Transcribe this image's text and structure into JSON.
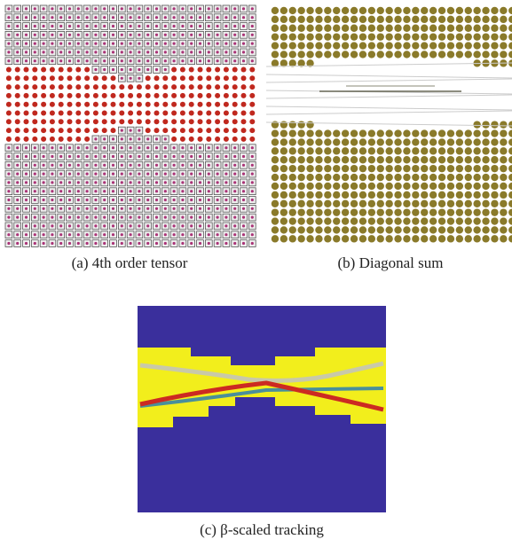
{
  "subfigures": [
    {
      "caption": "(a) 4th order tensor"
    },
    {
      "caption": "(b) Diagonal sum"
    },
    {
      "caption": "(c) β-scaled tracking"
    }
  ]
}
